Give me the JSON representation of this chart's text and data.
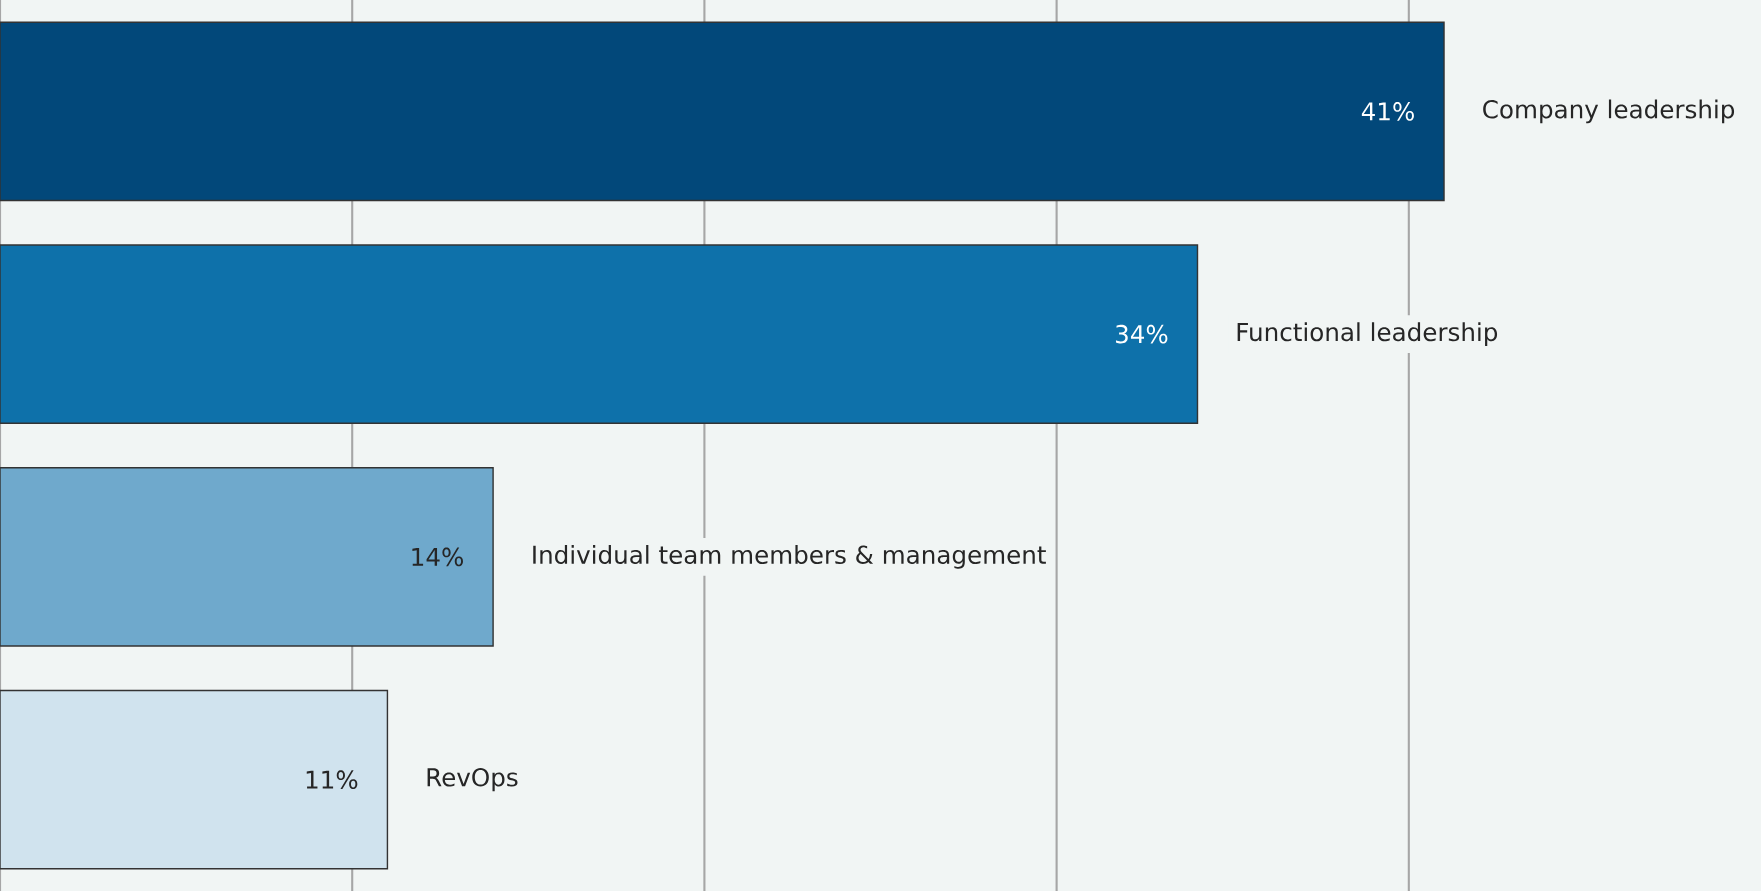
{
  "chart_data": {
    "type": "bar",
    "orientation": "horizontal",
    "categories": [
      "Company leadership",
      "Functional leadership",
      "Individual team members & management",
      "RevOps"
    ],
    "values": [
      41,
      34,
      14,
      11
    ],
    "value_labels": [
      "41%",
      "34%",
      "14%",
      "11%"
    ],
    "colors": [
      "#02487a",
      "#0e71aa",
      "#6fa9cc",
      "#d0e3ee"
    ],
    "xlim": [
      0,
      50
    ],
    "xticks": [
      {
        "value": 0,
        "label": null
      },
      {
        "value": 10,
        "label": null
      },
      {
        "value": 20,
        "label": null
      },
      {
        "value": 30,
        "label": null
      },
      {
        "value": 40,
        "label": null
      }
    ],
    "grid": "x"
  }
}
